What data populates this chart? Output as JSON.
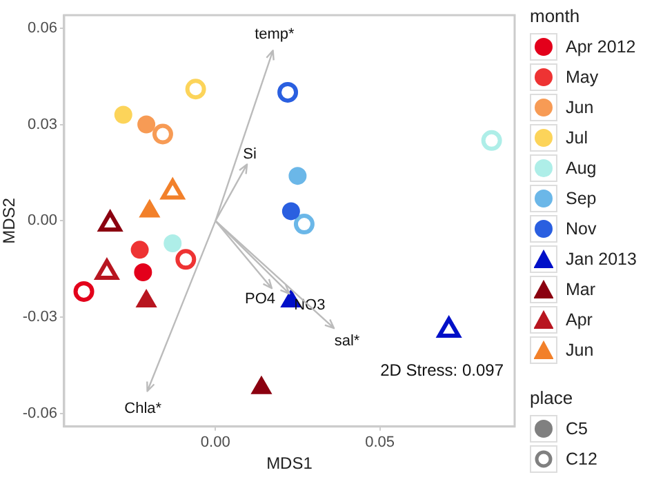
{
  "chart_data": {
    "type": "scatter",
    "xlabel": "MDS1",
    "ylabel": "MDS2",
    "legend": "right",
    "legend_title": "month",
    "grid": false,
    "xlim": [
      -0.046,
      0.091
    ],
    "ylim": [
      -0.064,
      0.064
    ],
    "xticks": [
      {
        "value": 0,
        "label": "0.00"
      },
      0.05
    ],
    "yticks": [
      {
        "value": -0.06,
        "label": "-0.06"
      },
      {
        "value": -0.03,
        "label": "-0.03"
      },
      {
        "value": 0,
        "label": "0.00"
      },
      0.03,
      0.06
    ],
    "annotations": [
      "2D Stress: 0.097",
      "place",
      "C5",
      "C12",
      "temp*",
      "Si",
      "PO4",
      "NO3",
      "sal*",
      "Chla*"
    ],
    "series": [
      {
        "name": "Apr 2012",
        "color": "#e3001b",
        "marker": "circle",
        "x": [
          -0.022
        ],
        "values": [
          -0.016
        ]
      },
      {
        "name": "May",
        "color": "#ee3333",
        "marker": "circle",
        "x": [
          -0.023
        ],
        "values": [
          -0.009
        ]
      },
      {
        "name": "Jun",
        "color": "#f79b55",
        "marker": "circle",
        "x": [
          -0.021
        ],
        "values": [
          0.03
        ]
      },
      {
        "name": "Jul",
        "color": "#fcd45a",
        "marker": "circle",
        "x": [
          -0.028
        ],
        "values": [
          0.033
        ]
      },
      {
        "name": "Aug",
        "color": "#aeeee8",
        "marker": "circle",
        "x": [
          -0.013
        ],
        "values": [
          -0.007
        ]
      },
      {
        "name": "Sep",
        "color": "#6bb7e8",
        "marker": "circle",
        "x": [
          0.025
        ],
        "values": [
          0.014
        ]
      },
      {
        "name": "Nov",
        "color": "#2a5fe0",
        "marker": "circle",
        "x": [
          0.023
        ],
        "values": [
          0.003
        ]
      },
      {
        "name": "Jan 2013",
        "color": "#0010c8",
        "marker": "triangle",
        "x": [
          0.023
        ],
        "values": [
          -0.025
        ]
      },
      {
        "name": "Mar",
        "color": "#8b0010",
        "marker": "triangle",
        "x": [
          0.014
        ],
        "values": [
          -0.052
        ]
      },
      {
        "name": "Apr",
        "color": "#b81620",
        "marker": "triangle",
        "x": [
          -0.021
        ],
        "values": [
          -0.025
        ]
      },
      {
        "name": "Jun",
        "color": "#f2802a",
        "marker": "triangle",
        "x": [
          -0.02
        ],
        "values": [
          0.003
        ]
      },
      {
        "color": "#e3001b",
        "marker": "circle",
        "x": [
          -0.04
        ],
        "values": [
          -0.022
        ]
      },
      {
        "color": "#ee3333",
        "marker": "circle",
        "x": [
          -0.009
        ],
        "values": [
          -0.012
        ]
      },
      {
        "color": "#f79b55",
        "marker": "circle",
        "x": [
          -0.016
        ],
        "values": [
          0.027
        ]
      },
      {
        "color": "#fcd45a",
        "marker": "circle",
        "x": [
          -0.006
        ],
        "values": [
          0.041
        ]
      },
      {
        "color": "#aeeee8",
        "marker": "circle",
        "x": [
          0.084
        ],
        "values": [
          0.025
        ]
      },
      {
        "color": "#6bb7e8",
        "marker": "circle",
        "x": [
          0.027
        ],
        "values": [
          -0.001
        ]
      },
      {
        "color": "#2a5fe0",
        "marker": "circle",
        "x": [
          0.022
        ],
        "values": [
          0.04
        ]
      },
      {
        "color": "#0010c8",
        "marker": "triangle",
        "x": [
          0.071
        ],
        "values": [
          -0.034
        ]
      },
      {
        "color": "#8b0010",
        "marker": "triangle",
        "x": [
          -0.032
        ],
        "values": [
          -0.001
        ]
      },
      {
        "color": "#b81620",
        "marker": "triangle",
        "x": [
          -0.033
        ],
        "values": [
          -0.016
        ]
      },
      {
        "color": "#f2802a",
        "marker": "triangle",
        "x": [
          -0.013
        ],
        "values": [
          0.009
        ]
      }
    ]
  }
}
